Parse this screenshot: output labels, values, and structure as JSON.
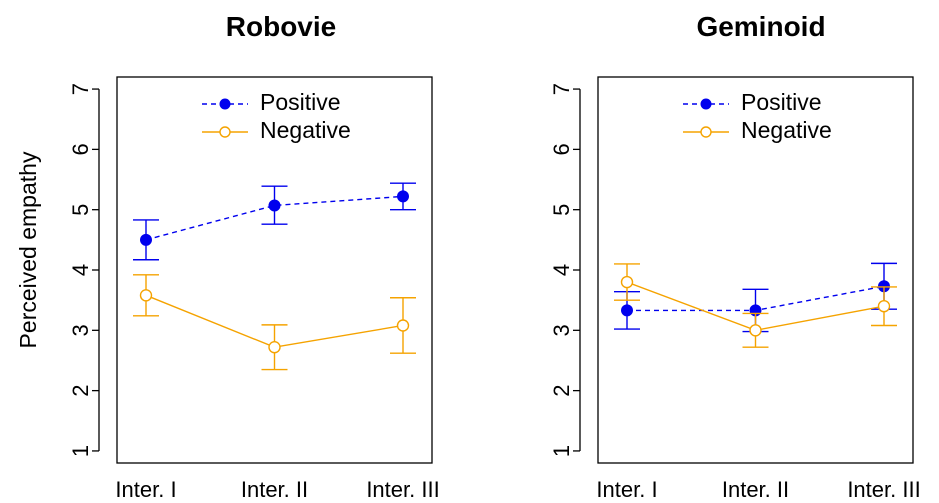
{
  "chart_data": [
    {
      "type": "line",
      "title": "Robovie",
      "ylabel": "Perceived empathy",
      "xlabel": "",
      "categories": [
        "Inter. I",
        "Inter. II",
        "Inter. III"
      ],
      "ylim": [
        0.8,
        7.2
      ],
      "yticks": [
        "1",
        "2",
        "3",
        "4",
        "5",
        "6",
        "7"
      ],
      "legend_position": "top",
      "grid": false,
      "series": [
        {
          "name": "Positive",
          "color": "#0000ee",
          "line_style": "dashed",
          "marker": "filled-circle",
          "values": [
            4.5,
            5.07,
            5.22
          ],
          "error_low": [
            4.17,
            4.76,
            5.0
          ],
          "error_high": [
            4.83,
            5.39,
            5.44
          ]
        },
        {
          "name": "Negative",
          "color": "#f5a300",
          "line_style": "solid",
          "marker": "open-circle",
          "values": [
            3.58,
            2.72,
            3.08
          ],
          "error_low": [
            3.24,
            2.35,
            2.62
          ],
          "error_high": [
            3.92,
            3.09,
            3.54
          ]
        }
      ]
    },
    {
      "type": "line",
      "title": "Geminoid",
      "ylabel": "",
      "xlabel": "",
      "categories": [
        "Inter. I",
        "Inter. II",
        "Inter. III"
      ],
      "ylim": [
        0.8,
        7.2
      ],
      "yticks": [
        "1",
        "2",
        "3",
        "4",
        "5",
        "6",
        "7"
      ],
      "legend_position": "top",
      "grid": false,
      "series": [
        {
          "name": "Positive",
          "color": "#0000ee",
          "line_style": "dashed",
          "marker": "filled-circle",
          "values": [
            3.33,
            3.33,
            3.73
          ],
          "error_low": [
            3.02,
            2.98,
            3.35
          ],
          "error_high": [
            3.64,
            3.68,
            4.11
          ]
        },
        {
          "name": "Negative",
          "color": "#f5a300",
          "line_style": "solid",
          "marker": "open-circle",
          "values": [
            3.8,
            3.0,
            3.4
          ],
          "error_low": [
            3.5,
            2.72,
            3.08
          ],
          "error_high": [
            4.1,
            3.28,
            3.72
          ]
        }
      ]
    }
  ]
}
